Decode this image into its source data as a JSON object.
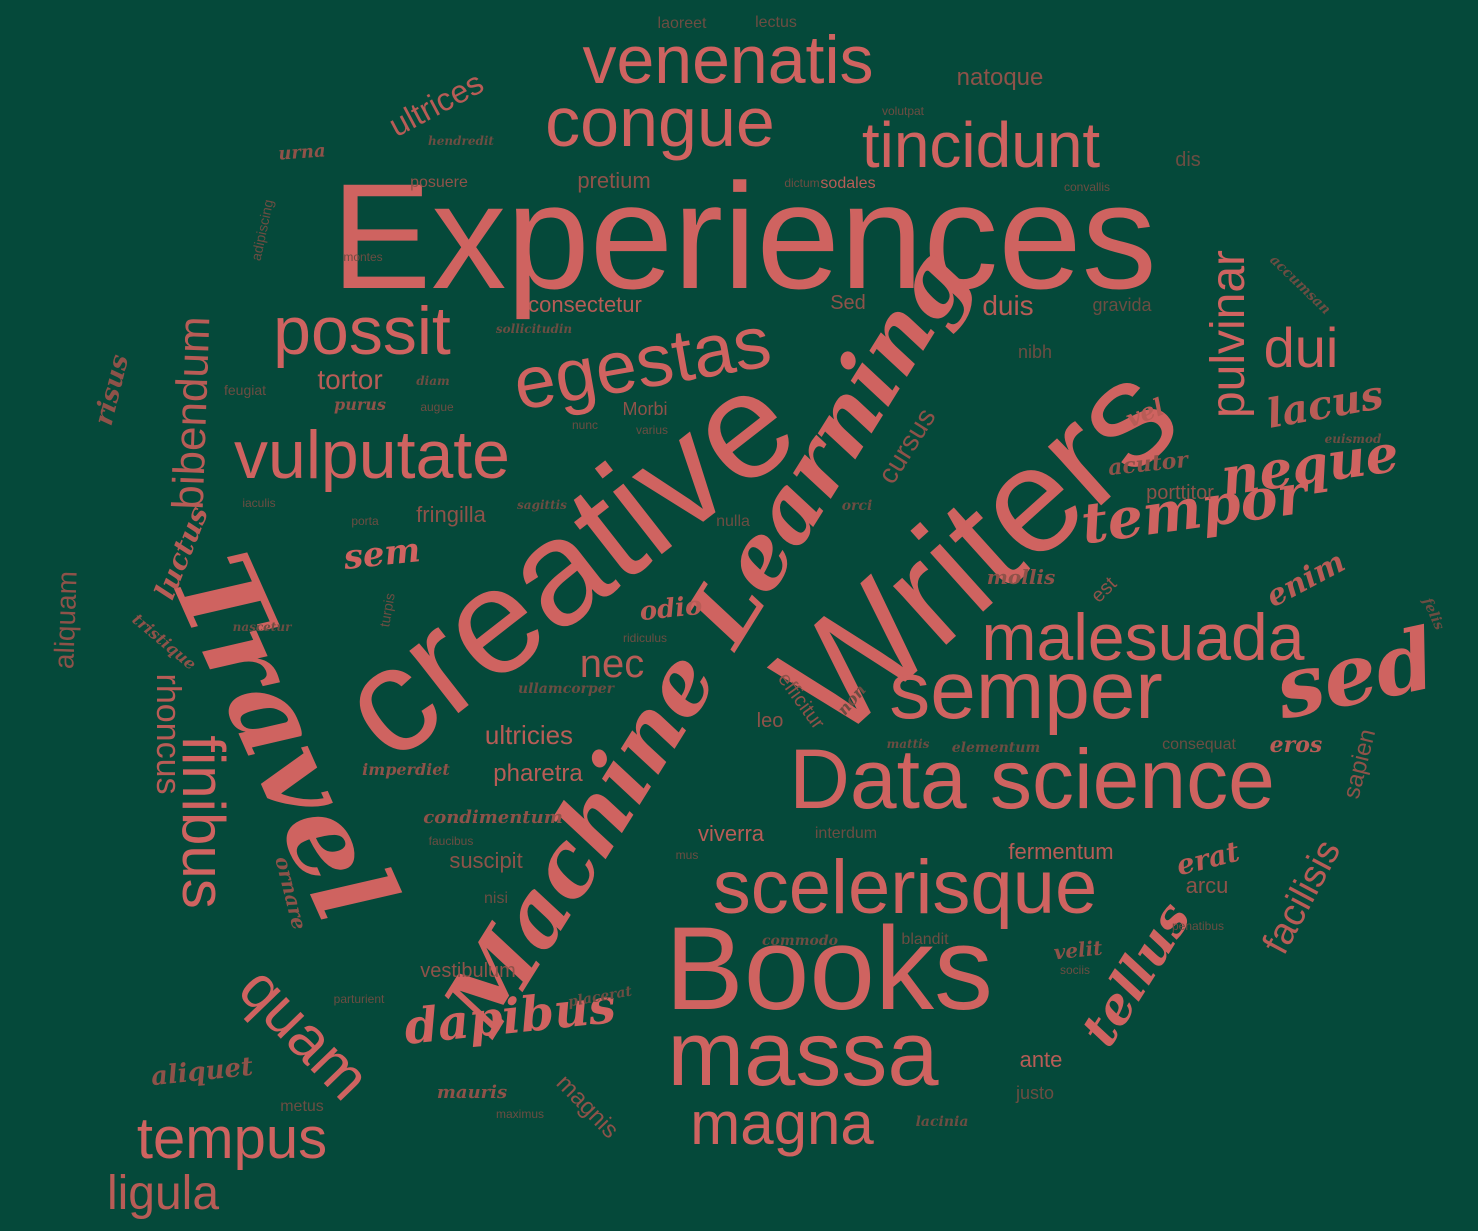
{
  "colors": {
    "background": "#05493a",
    "bright": "#cf6360",
    "mid": "#b85c56",
    "dim": "#8e5249",
    "faint": "#6c4d42"
  },
  "words": [
    {
      "text": "Experiences",
      "tone": "bright",
      "style": "sans"
    },
    {
      "text": "creative",
      "tone": "bright",
      "style": "sans"
    },
    {
      "text": "Writers",
      "tone": "bright",
      "style": "sans"
    },
    {
      "text": "Travel",
      "tone": "bright",
      "style": "script"
    },
    {
      "text": "Machine Learning",
      "tone": "bright",
      "style": "script"
    },
    {
      "text": "Books",
      "tone": "bright",
      "style": "sans"
    },
    {
      "text": "massa",
      "tone": "bright",
      "style": "sans"
    },
    {
      "text": "Data science",
      "tone": "bright",
      "style": "sans"
    },
    {
      "text": "scelerisque",
      "tone": "bright",
      "style": "sans"
    },
    {
      "text": "semper",
      "tone": "bright",
      "style": "sans"
    },
    {
      "text": "sed",
      "tone": "bright",
      "style": "script"
    },
    {
      "text": "malesuada",
      "tone": "bright",
      "style": "sans"
    },
    {
      "text": "congue",
      "tone": "bright",
      "style": "sans"
    },
    {
      "text": "venenatis",
      "tone": "bright",
      "style": "sans"
    },
    {
      "text": "tincidunt",
      "tone": "bright",
      "style": "sans"
    },
    {
      "text": "egestas",
      "tone": "bright",
      "style": "sans"
    },
    {
      "text": "possit",
      "tone": "bright",
      "style": "sans"
    },
    {
      "text": "vulputate",
      "tone": "bright",
      "style": "sans"
    },
    {
      "text": "finibus",
      "tone": "bright",
      "style": "sans"
    },
    {
      "text": "quam",
      "tone": "bright",
      "style": "sans"
    },
    {
      "text": "tempus",
      "tone": "bright",
      "style": "sans"
    },
    {
      "text": "magna",
      "tone": "bright",
      "style": "sans"
    },
    {
      "text": "dui",
      "tone": "bright",
      "style": "sans"
    },
    {
      "text": "pulvinar",
      "tone": "bright",
      "style": "sans"
    },
    {
      "text": "tempor",
      "tone": "bright",
      "style": "script"
    },
    {
      "text": "neque",
      "tone": "bright",
      "style": "script"
    },
    {
      "text": "dapibus",
      "tone": "bright",
      "style": "script"
    },
    {
      "text": "tellus",
      "tone": "bright",
      "style": "script"
    },
    {
      "text": "lacus",
      "tone": "mid",
      "style": "script"
    },
    {
      "text": "bibendum",
      "tone": "mid",
      "style": "sans"
    },
    {
      "text": "rhoncus",
      "tone": "mid",
      "style": "sans"
    },
    {
      "text": "ligula",
      "tone": "mid",
      "style": "sans"
    },
    {
      "text": "aliquam",
      "tone": "dim",
      "style": "sans"
    },
    {
      "text": "facilisis",
      "tone": "mid",
      "style": "sans"
    },
    {
      "text": "sapien",
      "tone": "dim",
      "style": "sans"
    },
    {
      "text": "nec",
      "tone": "mid",
      "style": "sans"
    },
    {
      "text": "ultrices",
      "tone": "mid",
      "style": "sans"
    },
    {
      "text": "cursus",
      "tone": "dim",
      "style": "sans"
    },
    {
      "text": "tortor",
      "tone": "mid",
      "style": "sans"
    },
    {
      "text": "duis",
      "tone": "mid",
      "style": "sans"
    },
    {
      "text": "consectetur",
      "tone": "mid",
      "style": "sans"
    },
    {
      "text": "natoque",
      "tone": "dim",
      "style": "sans"
    },
    {
      "text": "pretium",
      "tone": "dim",
      "style": "sans"
    },
    {
      "text": "sem",
      "tone": "bright",
      "style": "script"
    },
    {
      "text": "odio",
      "tone": "mid",
      "style": "script"
    },
    {
      "text": "enim",
      "tone": "mid",
      "style": "script"
    },
    {
      "text": "luctus",
      "tone": "mid",
      "style": "script"
    },
    {
      "text": "risus",
      "tone": "dim",
      "style": "script"
    },
    {
      "text": "ultricies",
      "tone": "mid",
      "style": "sans"
    },
    {
      "text": "pharetra",
      "tone": "mid",
      "style": "sans"
    },
    {
      "text": "viverra",
      "tone": "mid",
      "style": "sans"
    },
    {
      "text": "suscipit",
      "tone": "dim",
      "style": "sans"
    },
    {
      "text": "fringilla",
      "tone": "dim",
      "style": "sans"
    },
    {
      "text": "vestibulum",
      "tone": "dim",
      "style": "sans"
    },
    {
      "text": "magnis",
      "tone": "dim",
      "style": "sans"
    },
    {
      "text": "fermentum",
      "tone": "mid",
      "style": "sans"
    },
    {
      "text": "arcu",
      "tone": "dim",
      "style": "sans"
    },
    {
      "text": "ante",
      "tone": "mid",
      "style": "sans"
    },
    {
      "text": "porttitor",
      "tone": "dim",
      "style": "sans"
    },
    {
      "text": "est",
      "tone": "dim",
      "style": "sans"
    },
    {
      "text": "leo",
      "tone": "dim",
      "style": "sans"
    },
    {
      "text": "efficitur",
      "tone": "dim",
      "style": "sans"
    },
    {
      "text": "Morbi",
      "tone": "dim",
      "style": "sans"
    },
    {
      "text": "nibh",
      "tone": "faint",
      "style": "sans"
    },
    {
      "text": "Sed",
      "tone": "dim",
      "style": "sans"
    },
    {
      "text": "gravida",
      "tone": "faint",
      "style": "sans"
    },
    {
      "text": "dis",
      "tone": "faint",
      "style": "sans"
    },
    {
      "text": "posuere",
      "tone": "dim",
      "style": "sans"
    },
    {
      "text": "sodales",
      "tone": "mid",
      "style": "sans"
    },
    {
      "text": "dictum",
      "tone": "faint",
      "style": "sans"
    },
    {
      "text": "convallis",
      "tone": "faint",
      "style": "sans"
    },
    {
      "text": "laoreet",
      "tone": "faint",
      "style": "sans"
    },
    {
      "text": "lectus",
      "tone": "faint",
      "style": "sans"
    },
    {
      "text": "volutpat",
      "tone": "faint",
      "style": "sans"
    },
    {
      "text": "urna",
      "tone": "dim",
      "style": "script"
    },
    {
      "text": "hendredit",
      "tone": "faint",
      "style": "script"
    },
    {
      "text": "adipiscing",
      "tone": "faint",
      "style": "sans"
    },
    {
      "text": "montes",
      "tone": "faint",
      "style": "sans"
    },
    {
      "text": "sollicitudin",
      "tone": "faint",
      "style": "script"
    },
    {
      "text": "feugiat",
      "tone": "faint",
      "style": "sans"
    },
    {
      "text": "diam",
      "tone": "faint",
      "style": "script"
    },
    {
      "text": "purus",
      "tone": "dim",
      "style": "script"
    },
    {
      "text": "augue",
      "tone": "faint",
      "style": "sans"
    },
    {
      "text": "nunc",
      "tone": "faint",
      "style": "sans"
    },
    {
      "text": "varius",
      "tone": "faint",
      "style": "sans"
    },
    {
      "text": "vel",
      "tone": "mid",
      "style": "script"
    },
    {
      "text": "accumsan",
      "tone": "faint",
      "style": "script"
    },
    {
      "text": "euismod",
      "tone": "faint",
      "style": "script"
    },
    {
      "text": "acutor",
      "tone": "dim",
      "style": "script"
    },
    {
      "text": "iaculis",
      "tone": "faint",
      "style": "sans"
    },
    {
      "text": "porta",
      "tone": "faint",
      "style": "sans"
    },
    {
      "text": "sagittis",
      "tone": "faint",
      "style": "script"
    },
    {
      "text": "orci",
      "tone": "faint",
      "style": "script"
    },
    {
      "text": "nulla",
      "tone": "faint",
      "style": "sans"
    },
    {
      "text": "mollis",
      "tone": "dim",
      "style": "script"
    },
    {
      "text": "felis",
      "tone": "faint",
      "style": "script"
    },
    {
      "text": "tristique",
      "tone": "dim",
      "style": "script"
    },
    {
      "text": "nascetur",
      "tone": "faint",
      "style": "script"
    },
    {
      "text": "turpis",
      "tone": "faint",
      "style": "sans"
    },
    {
      "text": "ridiculus",
      "tone": "faint",
      "style": "sans"
    },
    {
      "text": "ullamcorper",
      "tone": "faint",
      "style": "script"
    },
    {
      "text": "non",
      "tone": "faint",
      "style": "script"
    },
    {
      "text": "mattis",
      "tone": "faint",
      "style": "script"
    },
    {
      "text": "elementum",
      "tone": "faint",
      "style": "script"
    },
    {
      "text": "consequat",
      "tone": "faint",
      "style": "sans"
    },
    {
      "text": "eros",
      "tone": "mid",
      "style": "script"
    },
    {
      "text": "imperdiet",
      "tone": "dim",
      "style": "script"
    },
    {
      "text": "condimentum",
      "tone": "dim",
      "style": "script"
    },
    {
      "text": "interdum",
      "tone": "faint",
      "style": "sans"
    },
    {
      "text": "faucibus",
      "tone": "faint",
      "style": "sans"
    },
    {
      "text": "mus",
      "tone": "faint",
      "style": "sans"
    },
    {
      "text": "ornare",
      "tone": "dim",
      "style": "script"
    },
    {
      "text": "erat",
      "tone": "mid",
      "style": "script"
    },
    {
      "text": "nisi",
      "tone": "faint",
      "style": "sans"
    },
    {
      "text": "penatibus",
      "tone": "faint",
      "style": "sans"
    },
    {
      "text": "commodo",
      "tone": "faint",
      "style": "script"
    },
    {
      "text": "blandit",
      "tone": "faint",
      "style": "sans"
    },
    {
      "text": "velit",
      "tone": "dim",
      "style": "script"
    },
    {
      "text": "sociis",
      "tone": "faint",
      "style": "sans"
    },
    {
      "text": "parturient",
      "tone": "faint",
      "style": "sans"
    },
    {
      "text": "placerat",
      "tone": "faint",
      "style": "script"
    },
    {
      "text": "aliquet",
      "tone": "dim",
      "style": "script"
    },
    {
      "text": "metus",
      "tone": "faint",
      "style": "sans"
    },
    {
      "text": "mauris",
      "tone": "dim",
      "style": "script"
    },
    {
      "text": "maximus",
      "tone": "faint",
      "style": "sans"
    },
    {
      "text": "justo",
      "tone": "faint",
      "style": "sans"
    },
    {
      "text": "lacinia",
      "tone": "faint",
      "style": "script"
    }
  ]
}
